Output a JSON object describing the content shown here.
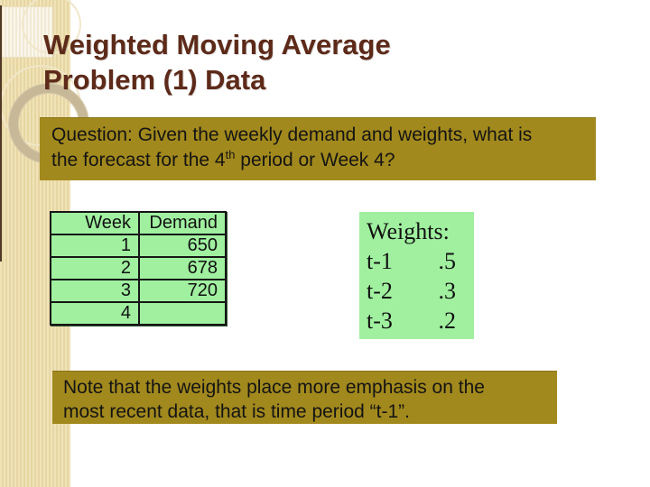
{
  "title": {
    "line1": "Weighted Moving Average",
    "line2": "Problem (1) Data"
  },
  "question_box": {
    "line1": "Question: Given the weekly demand and weights, what is",
    "line2_prefix": "the forecast for the 4",
    "line2_sup": "th",
    "line2_suffix": " period or Week 4?"
  },
  "demand_table": {
    "headers": [
      "Week",
      "Demand"
    ],
    "rows": [
      [
        "1",
        "650"
      ],
      [
        "2",
        "678"
      ],
      [
        "3",
        "720"
      ],
      [
        "4",
        ""
      ]
    ]
  },
  "weights_box": {
    "title": "Weights:",
    "rows": [
      [
        "t-1",
        ".5"
      ],
      [
        "t-2",
        ".3"
      ],
      [
        "t-3",
        ".2"
      ]
    ]
  },
  "note_box": {
    "line1": "Note that the weights place more emphasis on the",
    "line2": "most recent data, that is time period “t-1”."
  },
  "colors": {
    "title_text": "#5d2a19",
    "olive_box": "#a2891d",
    "green_box": "#a0f0a0",
    "strip": "#e9d9a6",
    "background": "#ffffff"
  }
}
